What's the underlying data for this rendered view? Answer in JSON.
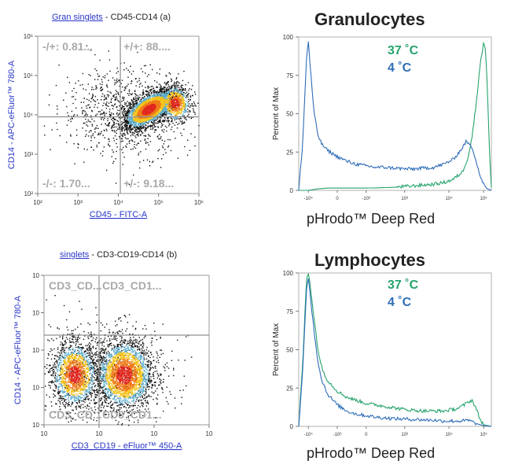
{
  "colors": {
    "warm": "#25a36c",
    "cold": "#2f6db8",
    "axis_blue": "#2a37c8",
    "quad_text": "#a9a9a9",
    "quad_line": "#8f8f8f"
  },
  "chart_data": [
    {
      "id": "gran_dot",
      "type": "scatter",
      "gate_label": "Gran singlets",
      "title": " - CD45-CD14 (a)",
      "xlabel": "CD45 - FITC-A",
      "ylabel": "CD14 - APC-eFluor™ 780-A",
      "x_ticks": [
        "10²",
        "10³",
        "10⁴",
        "10⁵",
        "10⁶"
      ],
      "y_ticks": [
        "10²",
        "10³",
        "10⁴",
        "10⁵",
        "10⁶"
      ],
      "xlim": [
        2,
        6
      ],
      "ylim": [
        2,
        6
      ],
      "quadrant_x": 4.05,
      "quadrant_y": 3.95,
      "quadrants": {
        "ul": "-/+: 0.81...",
        "ur": "+/+: 88....",
        "ll": "-/-: 1.70...",
        "lr": "+/-: 9.18..."
      },
      "populations": [
        {
          "name": "main",
          "cx": 4.75,
          "cy": 4.15,
          "sx": 0.35,
          "sy": 0.17,
          "n": 2800,
          "rot": 0.6
        },
        {
          "name": "peak",
          "cx": 5.4,
          "cy": 4.3,
          "sx": 0.18,
          "sy": 0.22,
          "n": 800,
          "rot": 0.2
        },
        {
          "name": "sparse",
          "cx": 4.2,
          "cy": 4.1,
          "sx": 0.8,
          "sy": 0.55,
          "n": 900,
          "rot": 0
        }
      ]
    },
    {
      "id": "lymph_dot",
      "type": "scatter",
      "gate_label": "singlets",
      "title": " - CD3-CD19-CD14 (b)",
      "xlabel": "CD3_CD19 - eFluor™ 450-A",
      "ylabel": "CD14 - APC-eFluor™ 780-A",
      "x_ticks": [
        "10",
        "10",
        "10",
        "10"
      ],
      "y_ticks": [
        "10",
        "10",
        "10",
        "10",
        "10"
      ],
      "xlim": [
        1,
        4
      ],
      "ylim": [
        1,
        5
      ],
      "quadrant_x": 2.0,
      "quadrant_y": 3.4,
      "quadrants": {
        "ul": "CD3_CD...",
        "ur": "CD3_CD1...",
        "ll": "CD3_CD...",
        "lr": "CD3_CD1..."
      },
      "populations": [
        {
          "name": "neg",
          "cx": 1.55,
          "cy": 2.35,
          "sx": 0.2,
          "sy": 0.42,
          "n": 1600,
          "rot": 0
        },
        {
          "name": "pos",
          "cx": 2.45,
          "cy": 2.35,
          "sx": 0.25,
          "sy": 0.45,
          "n": 2600,
          "rot": 0
        },
        {
          "name": "sparse",
          "cx": 2.0,
          "cy": 2.5,
          "sx": 0.65,
          "sy": 0.65,
          "n": 700,
          "rot": 0
        }
      ]
    },
    {
      "id": "gran_hist",
      "type": "line",
      "title": "Granulocytes",
      "xlabel": "pHrodo™ Deep Red",
      "ylabel": "Percent of Max",
      "x_ticks": [
        "-10⁴",
        "0",
        "-10³",
        "10³",
        "10⁴",
        "10⁵"
      ],
      "y_ticks": [
        "0",
        "25",
        "50",
        "75",
        "100"
      ],
      "ylim": [
        0,
        100
      ],
      "legend": [
        "37 ˚C",
        "4 ˚C"
      ],
      "series": [
        {
          "name": "37 ˚C",
          "color": "#25a36c",
          "x": [
            0,
            0.05,
            0.1,
            0.15,
            0.2,
            0.25,
            0.3,
            0.35,
            0.4,
            0.45,
            0.5,
            0.55,
            0.6,
            0.65,
            0.7,
            0.75,
            0.8,
            0.85,
            0.88,
            0.9,
            0.92,
            0.94,
            0.96,
            0.97,
            0.98,
            0.99,
            1.0
          ],
          "y": [
            0,
            0,
            1,
            1.5,
            1.5,
            1.5,
            1.5,
            1.5,
            1.6,
            1.8,
            2,
            2.5,
            3,
            3.5,
            4,
            5,
            7,
            12,
            22,
            35,
            55,
            80,
            97,
            92,
            65,
            25,
            2
          ]
        },
        {
          "name": "4 ˚C",
          "color": "#2f6db8",
          "x": [
            0,
            0.02,
            0.04,
            0.05,
            0.06,
            0.08,
            0.1,
            0.12,
            0.15,
            0.2,
            0.25,
            0.3,
            0.35,
            0.4,
            0.45,
            0.5,
            0.55,
            0.6,
            0.65,
            0.7,
            0.75,
            0.8,
            0.84,
            0.87,
            0.9,
            0.92,
            0.94,
            0.96,
            0.97,
            0.98,
            1.0
          ],
          "y": [
            0,
            30,
            85,
            97,
            80,
            50,
            36,
            30,
            26,
            22,
            19,
            17,
            16,
            15,
            15,
            14.5,
            14,
            14,
            14.5,
            15,
            17,
            20,
            26,
            32,
            28,
            20,
            10,
            4,
            2,
            1,
            0
          ]
        }
      ]
    },
    {
      "id": "lymph_hist",
      "type": "line",
      "title": "Lymphocytes",
      "xlabel": "pHrodo™ Deep Red",
      "ylabel": "Percent of Max",
      "x_ticks": [
        "-10⁴",
        "-10³",
        "0",
        "10³",
        "10⁴",
        "10⁵"
      ],
      "y_ticks": [
        "0",
        "25",
        "50",
        "75",
        "100"
      ],
      "ylim": [
        0,
        100
      ],
      "legend": [
        "37 ˚C",
        "4 ˚C"
      ],
      "series": [
        {
          "name": "37 ˚C",
          "color": "#25a36c",
          "x": [
            0,
            0.02,
            0.04,
            0.05,
            0.06,
            0.08,
            0.1,
            0.12,
            0.15,
            0.2,
            0.25,
            0.3,
            0.35,
            0.4,
            0.45,
            0.5,
            0.55,
            0.6,
            0.65,
            0.7,
            0.75,
            0.8,
            0.83,
            0.86,
            0.88,
            0.9,
            0.92,
            0.94,
            0.96,
            1.0
          ],
          "y": [
            0,
            40,
            95,
            100,
            92,
            70,
            50,
            38,
            30,
            23,
            19,
            17,
            15,
            14,
            13,
            12,
            11,
            10.5,
            10,
            10,
            10,
            11,
            12,
            14,
            16,
            17,
            12,
            5,
            1,
            0
          ]
        },
        {
          "name": "4 ˚C",
          "color": "#2f6db8",
          "x": [
            0,
            0.02,
            0.04,
            0.05,
            0.06,
            0.08,
            0.1,
            0.12,
            0.15,
            0.2,
            0.25,
            0.3,
            0.35,
            0.4,
            0.5,
            0.6,
            0.7,
            0.75,
            0.8,
            0.85,
            0.88,
            0.9,
            0.93,
            0.96,
            1.0
          ],
          "y": [
            0,
            35,
            88,
            97,
            85,
            62,
            42,
            30,
            21,
            14,
            10,
            8,
            7,
            6,
            5,
            4.5,
            4,
            3.5,
            3.5,
            3.5,
            4,
            3,
            1.5,
            0.5,
            0
          ]
        }
      ]
    }
  ]
}
